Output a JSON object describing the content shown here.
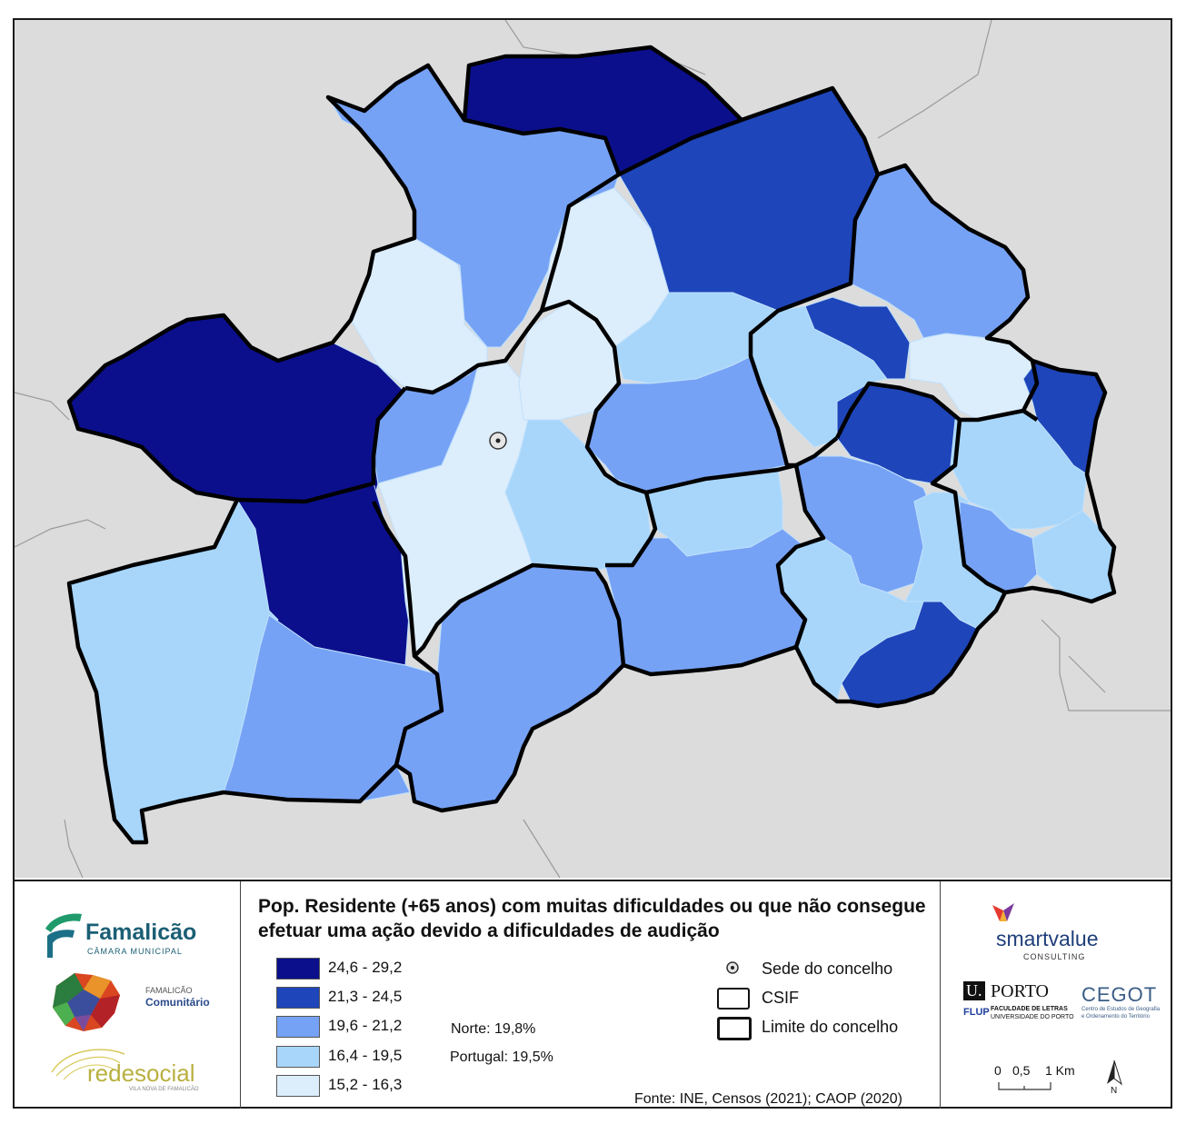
{
  "title": "Pop. Residente (+65 anos) com muitas dificuldades ou que não consegue efetuar uma ação devido a dificuldades de audição",
  "legend": {
    "classes": [
      {
        "label": "24,6 - 29,2",
        "color": "#0b0f8c"
      },
      {
        "label": "21,3 - 24,5",
        "color": "#1e45b9"
      },
      {
        "label": "19,6 - 21,2",
        "color": "#76a2f5"
      },
      {
        "label": "16,4 - 19,5",
        "color": "#a8d6fb"
      },
      {
        "label": "15,2 - 16,3",
        "color": "#dcedfc"
      }
    ],
    "references": {
      "norte": "Norte: 19,8%",
      "portugal": "Portugal: 19,5%"
    },
    "symbols": {
      "sede": "Sede do concelho",
      "csif": "CSIF",
      "limite": "Limite do concelho"
    },
    "source": "Fonte: INE, Censos (2021); CAOP (2020)"
  },
  "logos": {
    "famalicao_name": "Famalicão",
    "famalicao_sub": "CÂMARA MUNICIPAL",
    "comunitario_line1": "FAMALICÃO",
    "comunitario_line2": "Comunitário",
    "redesocial": "redesocial",
    "redesocial_sub": "VILA NOVA DE FAMALICÃO",
    "smartvalue": "smartvalue",
    "smartvalue_sub": "CONSULTING",
    "uporto_u": "U.",
    "uporto_porto": "PORTO",
    "flup": "FLUP",
    "flup_line1": "FACULDADE DE LETRAS",
    "flup_line2": "UNIVERSIDADE DO PORTO",
    "cegot": "CEGOT",
    "cegot_line1": "Centro de Estudos de Geografia",
    "cegot_line2": "e Ordenamento do Território"
  },
  "scale_bar": {
    "labels": [
      "0",
      "0,5",
      "1 Km"
    ]
  },
  "north_arrow": {
    "label": "N"
  },
  "colors": {
    "background_land": "#dcdcdc",
    "boundary": "#000000",
    "neighbor_lines": "#9a9a9a"
  }
}
